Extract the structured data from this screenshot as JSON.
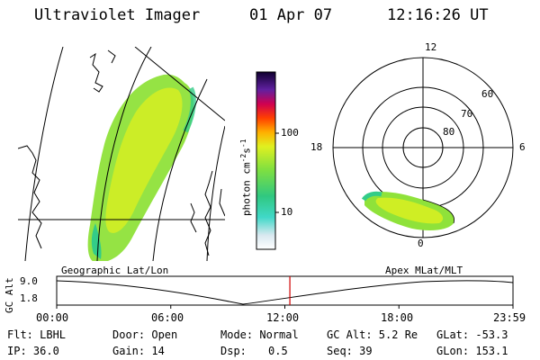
{
  "header": {
    "instrument": "Ultraviolet Imager",
    "date": "01 Apr 07",
    "time": "12:16:26 UT"
  },
  "left_panel": {
    "caption": "Geographic Lat/Lon"
  },
  "colorbar": {
    "label": "photon cm",
    "exp1": "-2",
    "mid": "s",
    "exp2": "-1",
    "ticks": [
      "100",
      "10"
    ]
  },
  "polar_panel": {
    "caption": "Apex MLat/MLT",
    "mlt_labels": {
      "top": "12",
      "left": "18",
      "right": "6",
      "bottom": "0"
    },
    "mlat_labels": [
      "60",
      "70",
      "80"
    ]
  },
  "timeline": {
    "axis_label": "GC Alt",
    "y_ticks": [
      "9.0",
      "1.8"
    ],
    "x_ticks": [
      "00:00",
      "06:00",
      "12:00",
      "18:00",
      "23:59"
    ],
    "current_time_fraction": 0.511
  },
  "status": {
    "filter": "Flt: LBHL",
    "ip": "IP: 36.0",
    "door": "Door: Open",
    "gain": "Gain: 14",
    "mode": "Mode: Normal",
    "dsp": "Dsp:",
    "dsp_value": "0.5",
    "gc_alt": "GC Alt: 5.2 Re",
    "seq": "Seq: 39",
    "glat": "GLat: -53.3",
    "glon": "GLon: 153.1"
  },
  "colors": {
    "current_time_marker": "#d00000",
    "aurora_low": "#33cc88",
    "aurora_mid": "#99e633",
    "aurora_high": "#ddf020"
  }
}
